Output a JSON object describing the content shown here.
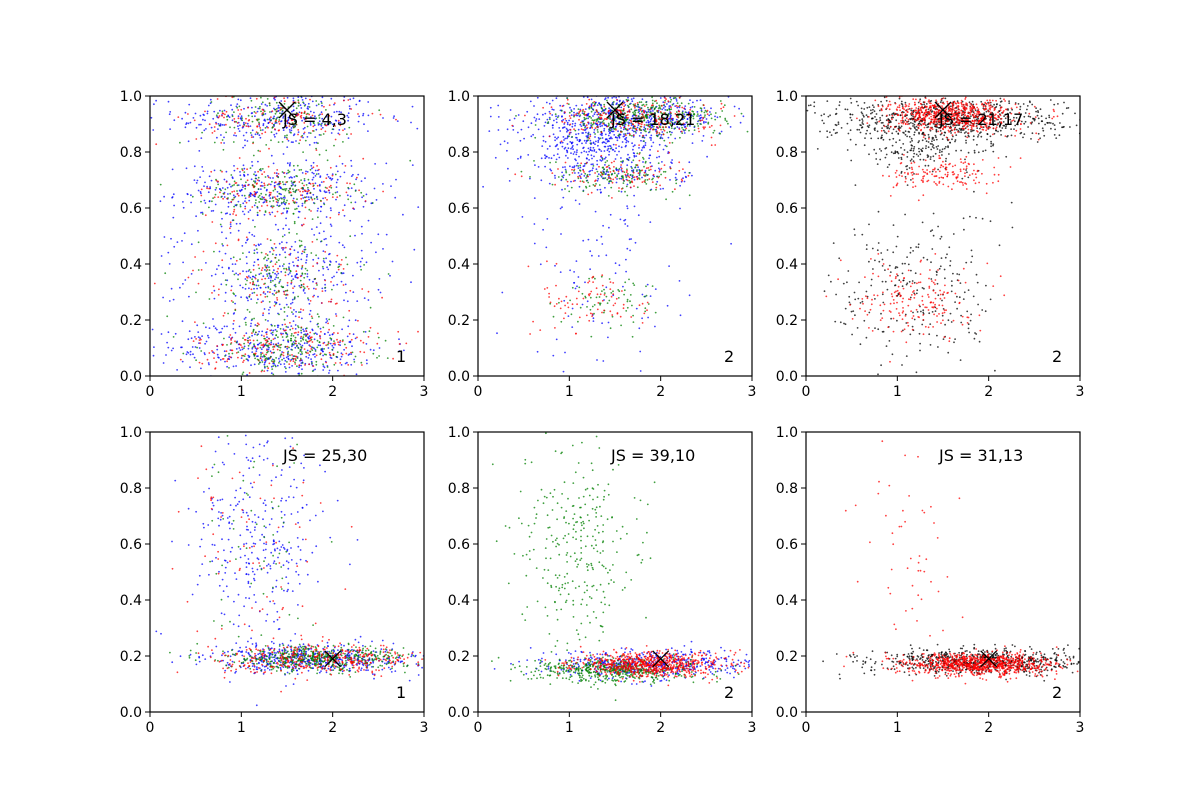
{
  "chart_data": [
    {
      "type": "scatter",
      "panel": 1,
      "xlim": [
        0,
        3
      ],
      "ylim": [
        0,
        1
      ],
      "xticks": [
        "0",
        "1",
        "2",
        "3"
      ],
      "yticks": [
        "0.0",
        "0.2",
        "0.4",
        "0.6",
        "0.8",
        "1.0"
      ],
      "annotation": "JS = 4,3",
      "corner_label": "1",
      "marker_x": [
        1.5,
        0.95
      ],
      "series": [
        {
          "color": "#0000ff",
          "clusters": [
            {
              "cx": 1.4,
              "cy": 0.92,
              "sx": 0.55,
              "sy": 0.05,
              "n": 300
            },
            {
              "cx": 1.4,
              "cy": 0.66,
              "sx": 0.55,
              "sy": 0.05,
              "n": 300
            },
            {
              "cx": 1.4,
              "cy": 0.35,
              "sx": 0.5,
              "sy": 0.08,
              "n": 250
            },
            {
              "cx": 1.4,
              "cy": 0.1,
              "sx": 0.6,
              "sy": 0.05,
              "n": 350
            },
            {
              "cx": 1.5,
              "cy": 0.5,
              "sx": 0.7,
              "sy": 0.3,
              "n": 200
            }
          ]
        },
        {
          "color": "#ff0000",
          "clusters": [
            {
              "cx": 1.4,
              "cy": 0.92,
              "sx": 0.45,
              "sy": 0.05,
              "n": 150
            },
            {
              "cx": 1.4,
              "cy": 0.66,
              "sx": 0.45,
              "sy": 0.05,
              "n": 150
            },
            {
              "cx": 1.4,
              "cy": 0.35,
              "sx": 0.45,
              "sy": 0.08,
              "n": 130
            },
            {
              "cx": 1.5,
              "cy": 0.1,
              "sx": 0.5,
              "sy": 0.05,
              "n": 200
            }
          ]
        },
        {
          "color": "#008000",
          "clusters": [
            {
              "cx": 1.4,
              "cy": 0.92,
              "sx": 0.4,
              "sy": 0.05,
              "n": 150
            },
            {
              "cx": 1.4,
              "cy": 0.66,
              "sx": 0.4,
              "sy": 0.05,
              "n": 180
            },
            {
              "cx": 1.4,
              "cy": 0.35,
              "sx": 0.4,
              "sy": 0.08,
              "n": 150
            },
            {
              "cx": 1.5,
              "cy": 0.1,
              "sx": 0.45,
              "sy": 0.05,
              "n": 220
            }
          ]
        }
      ]
    },
    {
      "type": "scatter",
      "panel": 2,
      "xlim": [
        0,
        3
      ],
      "ylim": [
        0,
        1
      ],
      "xticks": [
        "0",
        "1",
        "2",
        "3"
      ],
      "yticks": [
        "0.0",
        "0.2",
        "0.4",
        "0.6",
        "0.8",
        "1.0"
      ],
      "annotation": "JS = 18,21",
      "corner_label": "2",
      "marker_x": [
        1.5,
        0.95
      ],
      "series": [
        {
          "color": "#0000ff",
          "clusters": [
            {
              "cx": 1.6,
              "cy": 0.92,
              "sx": 0.55,
              "sy": 0.04,
              "n": 550
            },
            {
              "cx": 1.3,
              "cy": 0.82,
              "sx": 0.4,
              "sy": 0.05,
              "n": 300
            },
            {
              "cx": 1.5,
              "cy": 0.72,
              "sx": 0.4,
              "sy": 0.03,
              "n": 100
            },
            {
              "cx": 1.4,
              "cy": 0.4,
              "sx": 0.45,
              "sy": 0.2,
              "n": 120
            }
          ]
        },
        {
          "color": "#008000",
          "clusters": [
            {
              "cx": 1.8,
              "cy": 0.92,
              "sx": 0.45,
              "sy": 0.035,
              "n": 400
            },
            {
              "cx": 1.5,
              "cy": 0.72,
              "sx": 0.35,
              "sy": 0.03,
              "n": 150
            },
            {
              "cx": 1.5,
              "cy": 0.28,
              "sx": 0.3,
              "sy": 0.05,
              "n": 70
            }
          ]
        },
        {
          "color": "#ff0000",
          "clusters": [
            {
              "cx": 1.7,
              "cy": 0.92,
              "sx": 0.45,
              "sy": 0.035,
              "n": 250
            },
            {
              "cx": 1.5,
              "cy": 0.72,
              "sx": 0.35,
              "sy": 0.03,
              "n": 100
            },
            {
              "cx": 1.3,
              "cy": 0.27,
              "sx": 0.3,
              "sy": 0.06,
              "n": 80
            }
          ]
        }
      ]
    },
    {
      "type": "scatter",
      "panel": 3,
      "xlim": [
        0,
        3
      ],
      "ylim": [
        0,
        1
      ],
      "xticks": [
        "0",
        "1",
        "2",
        "3"
      ],
      "yticks": [
        "0.0",
        "0.2",
        "0.4",
        "0.6",
        "0.8",
        "1.0"
      ],
      "annotation": "JS = 21,17",
      "corner_label": "2",
      "marker_x": [
        1.5,
        0.95
      ],
      "series": [
        {
          "color": "#000000",
          "clusters": [
            {
              "cx": 1.5,
              "cy": 0.92,
              "sx": 0.7,
              "sy": 0.04,
              "n": 700
            },
            {
              "cx": 1.3,
              "cy": 0.82,
              "sx": 0.4,
              "sy": 0.05,
              "n": 200
            },
            {
              "cx": 1.2,
              "cy": 0.3,
              "sx": 0.45,
              "sy": 0.15,
              "n": 250
            }
          ]
        },
        {
          "color": "#ff0000",
          "clusters": [
            {
              "cx": 1.6,
              "cy": 0.93,
              "sx": 0.35,
              "sy": 0.03,
              "n": 700
            },
            {
              "cx": 1.5,
              "cy": 0.72,
              "sx": 0.3,
              "sy": 0.03,
              "n": 150
            },
            {
              "cx": 1.2,
              "cy": 0.28,
              "sx": 0.3,
              "sy": 0.07,
              "n": 180
            }
          ]
        }
      ]
    },
    {
      "type": "scatter",
      "panel": 4,
      "xlim": [
        0,
        3
      ],
      "ylim": [
        0,
        1
      ],
      "xticks": [
        "0",
        "1",
        "2",
        "3"
      ],
      "yticks": [
        "0.0",
        "0.2",
        "0.4",
        "0.6",
        "0.8",
        "1.0"
      ],
      "annotation": "JS = 25,30",
      "corner_label": "1",
      "marker_x": [
        2.0,
        0.19
      ],
      "series": [
        {
          "color": "#0000ff",
          "clusters": [
            {
              "cx": 1.8,
              "cy": 0.19,
              "sx": 0.55,
              "sy": 0.025,
              "n": 500
            },
            {
              "cx": 1.2,
              "cy": 0.6,
              "sx": 0.35,
              "sy": 0.2,
              "n": 300
            }
          ]
        },
        {
          "color": "#008000",
          "clusters": [
            {
              "cx": 1.8,
              "cy": 0.19,
              "sx": 0.5,
              "sy": 0.022,
              "n": 500
            },
            {
              "cx": 1.2,
              "cy": 0.6,
              "sx": 0.35,
              "sy": 0.2,
              "n": 60
            }
          ]
        },
        {
          "color": "#ff0000",
          "clusters": [
            {
              "cx": 1.9,
              "cy": 0.19,
              "sx": 0.55,
              "sy": 0.025,
              "n": 350
            },
            {
              "cx": 1.1,
              "cy": 0.55,
              "sx": 0.4,
              "sy": 0.25,
              "n": 80
            }
          ]
        }
      ]
    },
    {
      "type": "scatter",
      "panel": 5,
      "xlim": [
        0,
        3
      ],
      "ylim": [
        0,
        1
      ],
      "xticks": [
        "0",
        "1",
        "2",
        "3"
      ],
      "yticks": [
        "0.0",
        "0.2",
        "0.4",
        "0.6",
        "0.8",
        "1.0"
      ],
      "annotation": "JS = 39,10",
      "corner_label": "2",
      "marker_x": [
        2.0,
        0.19
      ],
      "series": [
        {
          "color": "#0000ff",
          "clusters": [
            {
              "cx": 1.9,
              "cy": 0.17,
              "sx": 0.55,
              "sy": 0.025,
              "n": 500
            }
          ]
        },
        {
          "color": "#008000",
          "clusters": [
            {
              "cx": 1.5,
              "cy": 0.15,
              "sx": 0.45,
              "sy": 0.022,
              "n": 500
            },
            {
              "cx": 1.1,
              "cy": 0.6,
              "sx": 0.3,
              "sy": 0.2,
              "n": 300
            }
          ]
        },
        {
          "color": "#ff0000",
          "clusters": [
            {
              "cx": 1.9,
              "cy": 0.17,
              "sx": 0.4,
              "sy": 0.022,
              "n": 700
            }
          ]
        }
      ]
    },
    {
      "type": "scatter",
      "panel": 6,
      "xlim": [
        0,
        3
      ],
      "ylim": [
        0,
        1
      ],
      "xticks": [
        "0",
        "1",
        "2",
        "3"
      ],
      "yticks": [
        "0.0",
        "0.2",
        "0.4",
        "0.6",
        "0.8",
        "1.0"
      ],
      "annotation": "JS = 31,13",
      "corner_label": "2",
      "marker_x": [
        2.0,
        0.19
      ],
      "series": [
        {
          "color": "#000000",
          "clusters": [
            {
              "cx": 1.9,
              "cy": 0.18,
              "sx": 0.6,
              "sy": 0.022,
              "n": 700
            }
          ]
        },
        {
          "color": "#ff0000",
          "clusters": [
            {
              "cx": 1.9,
              "cy": 0.17,
              "sx": 0.4,
              "sy": 0.02,
              "n": 900
            },
            {
              "cx": 1.1,
              "cy": 0.55,
              "sx": 0.3,
              "sy": 0.2,
              "n": 50
            }
          ]
        }
      ]
    }
  ]
}
